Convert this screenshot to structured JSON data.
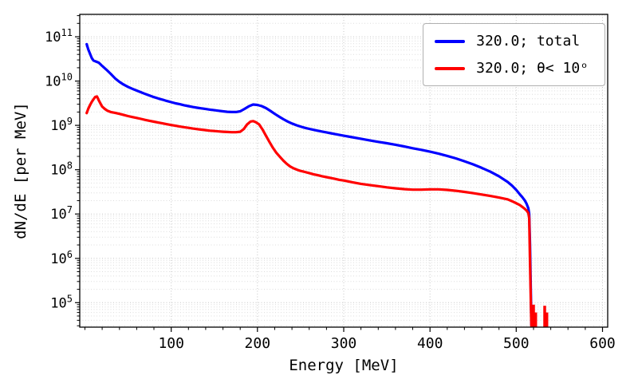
{
  "chart_data": {
    "type": "line",
    "title": "",
    "xlabel": "Energy [MeV]",
    "ylabel": "dN/dE [per MeV]",
    "xlim": [
      -6,
      606
    ],
    "ylim": [
      28000,
      320000000000.0
    ],
    "yscale": "log",
    "x_ticks": [
      100,
      200,
      300,
      400,
      500,
      600
    ],
    "x_minor_tick_step": 20,
    "y_tick_exponents": [
      5,
      6,
      7,
      8,
      9,
      10,
      11
    ],
    "grid": "horizontal major+minor and vertical major, dotted light gray",
    "legend_position": "upper right",
    "series": [
      {
        "name": "320.0; total",
        "color": "#0000ff",
        "points": [
          [
            2,
            68000000000.0
          ],
          [
            4,
            51000000000.0
          ],
          [
            6,
            41000000000.0
          ],
          [
            8,
            33000000000.0
          ],
          [
            10,
            29000000000.0
          ],
          [
            13,
            27500000000.0
          ],
          [
            16,
            26000000000.0
          ],
          [
            20,
            22000000000.0
          ],
          [
            25,
            18000000000.0
          ],
          [
            30,
            14500000000.0
          ],
          [
            35,
            11500000000.0
          ],
          [
            40,
            9600000000.0
          ],
          [
            45,
            8300000000.0
          ],
          [
            50,
            7400000000.0
          ],
          [
            55,
            6700000000.0
          ],
          [
            60,
            6100000000.0
          ],
          [
            65,
            5600000000.0
          ],
          [
            70,
            5100000000.0
          ],
          [
            75,
            4700000000.0
          ],
          [
            80,
            4350000000.0
          ],
          [
            85,
            4050000000.0
          ],
          [
            90,
            3800000000.0
          ],
          [
            95,
            3550000000.0
          ],
          [
            100,
            3350000000.0
          ],
          [
            105,
            3150000000.0
          ],
          [
            110,
            3000000000.0
          ],
          [
            115,
            2850000000.0
          ],
          [
            120,
            2720000000.0
          ],
          [
            125,
            2600000000.0
          ],
          [
            130,
            2500000000.0
          ],
          [
            135,
            2420000000.0
          ],
          [
            140,
            2340000000.0
          ],
          [
            145,
            2270000000.0
          ],
          [
            150,
            2200000000.0
          ],
          [
            155,
            2140000000.0
          ],
          [
            160,
            2080000000.0
          ],
          [
            165,
            2030000000.0
          ],
          [
            170,
            2000000000.0
          ],
          [
            175,
            2000000000.0
          ],
          [
            180,
            2080000000.0
          ],
          [
            185,
            2350000000.0
          ],
          [
            190,
            2700000000.0
          ],
          [
            195,
            2950000000.0
          ],
          [
            200,
            2900000000.0
          ],
          [
            205,
            2720000000.0
          ],
          [
            210,
            2450000000.0
          ],
          [
            215,
            2120000000.0
          ],
          [
            220,
            1820000000.0
          ],
          [
            225,
            1580000000.0
          ],
          [
            230,
            1380000000.0
          ],
          [
            235,
            1220000000.0
          ],
          [
            240,
            1100000000.0
          ],
          [
            245,
            1010000000.0
          ],
          [
            250,
            940000000.0
          ],
          [
            255,
            880000000.0
          ],
          [
            260,
            835000000.0
          ],
          [
            265,
            795000000.0
          ],
          [
            270,
            760000000.0
          ],
          [
            275,
            725000000.0
          ],
          [
            280,
            695000000.0
          ],
          [
            285,
            665000000.0
          ],
          [
            290,
            635000000.0
          ],
          [
            295,
            610000000.0
          ],
          [
            300,
            585000000.0
          ],
          [
            310,
            540000000.0
          ],
          [
            320,
            500000000.0
          ],
          [
            330,
            460000000.0
          ],
          [
            340,
            425000000.0
          ],
          [
            350,
            395000000.0
          ],
          [
            360,
            365000000.0
          ],
          [
            370,
            335000000.0
          ],
          [
            380,
            305000000.0
          ],
          [
            390,
            280000000.0
          ],
          [
            400,
            255000000.0
          ],
          [
            410,
            230000000.0
          ],
          [
            420,
            205000000.0
          ],
          [
            430,
            180000000.0
          ],
          [
            440,
            155000000.0
          ],
          [
            450,
            132000000.0
          ],
          [
            460,
            110000000.0
          ],
          [
            470,
            90000000.0
          ],
          [
            480,
            71000000.0
          ],
          [
            490,
            53000000.0
          ],
          [
            495,
            44000000.0
          ],
          [
            500,
            35000000.0
          ],
          [
            504,
            28000000.0
          ],
          [
            507,
            24000000.0
          ],
          [
            510,
            20000000.0
          ],
          [
            512,
            17000000.0
          ],
          [
            514,
            13500000.0
          ],
          [
            515,
            10000000.0
          ],
          [
            516,
            2000000.0
          ],
          [
            517,
            150000.0
          ],
          [
            517.5,
            32000.0
          ]
        ],
        "spikes": []
      },
      {
        "name": "320.0; θ< 10ᵒ",
        "color": "#ff0000",
        "points": [
          [
            2,
            1900000000.0
          ],
          [
            4,
            2400000000.0
          ],
          [
            6,
            2900000000.0
          ],
          [
            8,
            3400000000.0
          ],
          [
            10,
            3900000000.0
          ],
          [
            12,
            4400000000.0
          ],
          [
            14,
            4500000000.0
          ],
          [
            16,
            3700000000.0
          ],
          [
            18,
            3100000000.0
          ],
          [
            20,
            2650000000.0
          ],
          [
            23,
            2350000000.0
          ],
          [
            26,
            2150000000.0
          ],
          [
            30,
            2000000000.0
          ],
          [
            35,
            1920000000.0
          ],
          [
            40,
            1820000000.0
          ],
          [
            45,
            1720000000.0
          ],
          [
            50,
            1620000000.0
          ],
          [
            55,
            1540000000.0
          ],
          [
            60,
            1470000000.0
          ],
          [
            65,
            1400000000.0
          ],
          [
            70,
            1330000000.0
          ],
          [
            75,
            1270000000.0
          ],
          [
            80,
            1210000000.0
          ],
          [
            85,
            1160000000.0
          ],
          [
            90,
            1110000000.0
          ],
          [
            95,
            1060000000.0
          ],
          [
            100,
            1020000000.0
          ],
          [
            105,
            980000000.0
          ],
          [
            110,
            940000000.0
          ],
          [
            115,
            910000000.0
          ],
          [
            120,
            880000000.0
          ],
          [
            125,
            850000000.0
          ],
          [
            130,
            825000000.0
          ],
          [
            135,
            800000000.0
          ],
          [
            140,
            780000000.0
          ],
          [
            145,
            760000000.0
          ],
          [
            150,
            745000000.0
          ],
          [
            155,
            730000000.0
          ],
          [
            160,
            720000000.0
          ],
          [
            165,
            710000000.0
          ],
          [
            170,
            700000000.0
          ],
          [
            175,
            700000000.0
          ],
          [
            180,
            720000000.0
          ],
          [
            184,
            820000000.0
          ],
          [
            188,
            1050000000.0
          ],
          [
            192,
            1220000000.0
          ],
          [
            195,
            1250000000.0
          ],
          [
            198,
            1180000000.0
          ],
          [
            202,
            1050000000.0
          ],
          [
            206,
            800000000.0
          ],
          [
            210,
            580000000.0
          ],
          [
            214,
            420000000.0
          ],
          [
            218,
            310000000.0
          ],
          [
            222,
            240000000.0
          ],
          [
            226,
            195000000.0
          ],
          [
            230,
            160000000.0
          ],
          [
            234,
            135000000.0
          ],
          [
            238,
            118000000.0
          ],
          [
            242,
            107000000.0
          ],
          [
            246,
            100000000.0
          ],
          [
            250,
            94000000.0
          ],
          [
            255,
            89000000.0
          ],
          [
            260,
            84000000.0
          ],
          [
            265,
            79000000.0
          ],
          [
            270,
            75000000.0
          ],
          [
            275,
            71000000.0
          ],
          [
            280,
            68000000.0
          ],
          [
            285,
            65000000.0
          ],
          [
            290,
            62000000.0
          ],
          [
            295,
            59000000.0
          ],
          [
            300,
            57000000.0
          ],
          [
            310,
            52000000.0
          ],
          [
            320,
            48000000.0
          ],
          [
            330,
            45000000.0
          ],
          [
            340,
            42500000.0
          ],
          [
            350,
            40000000.0
          ],
          [
            360,
            38000000.0
          ],
          [
            370,
            36500000.0
          ],
          [
            380,
            35500000.0
          ],
          [
            390,
            35500000.0
          ],
          [
            400,
            36000000.0
          ],
          [
            410,
            36000000.0
          ],
          [
            420,
            35000000.0
          ],
          [
            430,
            33500000.0
          ],
          [
            440,
            31500000.0
          ],
          [
            450,
            29500000.0
          ],
          [
            460,
            27500000.0
          ],
          [
            470,
            25500000.0
          ],
          [
            480,
            23500000.0
          ],
          [
            490,
            21500000.0
          ],
          [
            495,
            19500000.0
          ],
          [
            500,
            17500000.0
          ],
          [
            504,
            16000000.0
          ],
          [
            507,
            14500000.0
          ],
          [
            510,
            13000000.0
          ],
          [
            512,
            12000000.0
          ],
          [
            514,
            10500000.0
          ],
          [
            515,
            8000000.0
          ],
          [
            516,
            800000.0
          ],
          [
            517,
            90000.0
          ],
          [
            517.5,
            30000.0
          ]
        ],
        "spikes": [
          [
            520,
            90000.0
          ],
          [
            522.5,
            60000.0
          ],
          [
            533,
            85000.0
          ],
          [
            535.5,
            60000.0
          ]
        ]
      }
    ]
  }
}
